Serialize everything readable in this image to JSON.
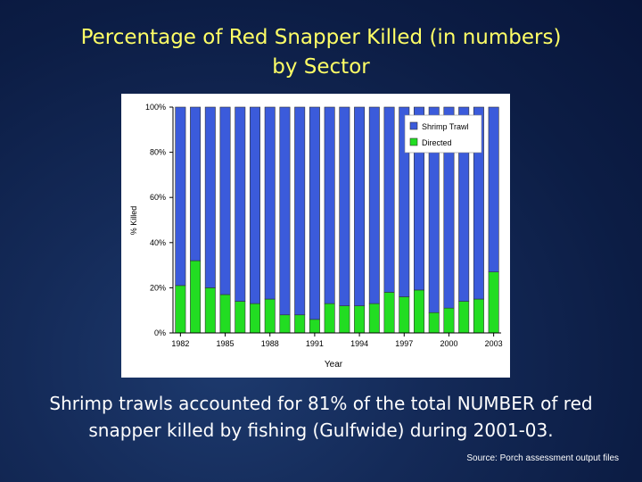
{
  "slide": {
    "title_line1": "Percentage of Red Snapper Killed (in numbers)",
    "title_line2": "by Sector",
    "caption_line1": "Shrimp trawls accounted for 81% of the total NUMBER of red",
    "caption_line2": "snapper killed by fishing (Gulfwide) during 2001-03.",
    "source": "Source: Porch assessment output files"
  },
  "chart_data": {
    "type": "bar",
    "stacked": true,
    "xlabel": "Year",
    "ylabel": "% Killed",
    "ylim": [
      0,
      100
    ],
    "yticks": [
      "0%",
      "20%",
      "40%",
      "60%",
      "80%",
      "100%"
    ],
    "x_tick_labels": [
      "1982",
      "1985",
      "1988",
      "1991",
      "1994",
      "1997",
      "2000",
      "2003"
    ],
    "categories": [
      "1982",
      "1983",
      "1984",
      "1985",
      "1986",
      "1987",
      "1988",
      "1989",
      "1990",
      "1991",
      "1992",
      "1993",
      "1994",
      "1995",
      "1996",
      "1997",
      "1998",
      "1999",
      "2000",
      "2001",
      "2002",
      "2003"
    ],
    "series": [
      {
        "name": "Directed",
        "color": "#22dd22",
        "values": [
          21,
          32,
          20,
          17,
          14,
          13,
          15,
          8,
          8,
          6,
          13,
          12,
          12,
          13,
          18,
          16,
          19,
          9,
          11,
          14,
          15,
          27
        ]
      },
      {
        "name": "Shrimp Trawl",
        "color": "#3b5bdb",
        "values": [
          79,
          68,
          80,
          83,
          86,
          87,
          85,
          92,
          92,
          94,
          87,
          88,
          88,
          87,
          82,
          84,
          81,
          91,
          89,
          86,
          85,
          73
        ]
      }
    ],
    "legend": [
      "Shrimp Trawl",
      "Directed"
    ],
    "legend_position": "top-right",
    "grid": false
  }
}
